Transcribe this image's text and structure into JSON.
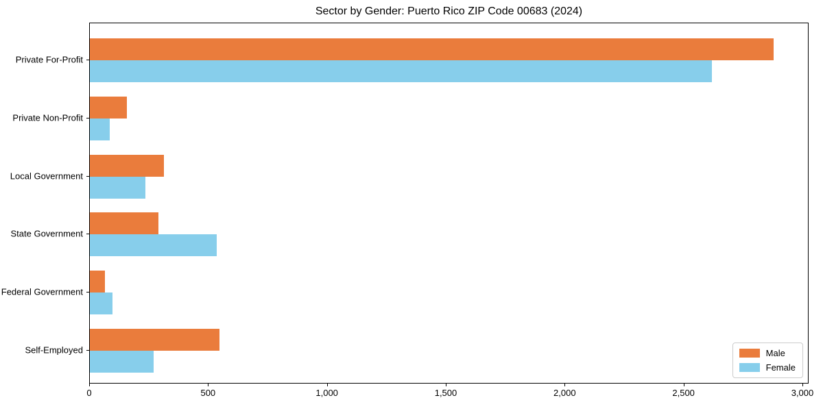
{
  "colors": {
    "male": "#EA7C3C",
    "female": "#87CEEB",
    "axis": "#000000",
    "legend_border": "#cccccc",
    "background": "#ffffff"
  },
  "chart_data": {
    "type": "bar",
    "orientation": "horizontal",
    "title": "Sector by Gender: Puerto Rico ZIP Code 00683 (2024)",
    "xlabel": "",
    "ylabel": "",
    "categories": [
      "Private For-Profit",
      "Private Non-Profit",
      "Local Government",
      "State Government",
      "Federal Government",
      "Self-Employed"
    ],
    "series": [
      {
        "name": "Male",
        "color": "#EA7C3C",
        "values": [
          2882,
          156,
          311,
          289,
          65,
          545
        ]
      },
      {
        "name": "Female",
        "color": "#87CEEB",
        "values": [
          2622,
          84,
          234,
          535,
          94,
          270
        ]
      }
    ],
    "xlim": [
      0,
      3026
    ],
    "xticks": [
      0,
      500,
      1000,
      1500,
      2000,
      2500,
      3000
    ],
    "xtick_labels": [
      "0",
      "500",
      "1,000",
      "1,500",
      "2,000",
      "2,500",
      "3,000"
    ],
    "grid": false,
    "legend_position": "lower right"
  }
}
